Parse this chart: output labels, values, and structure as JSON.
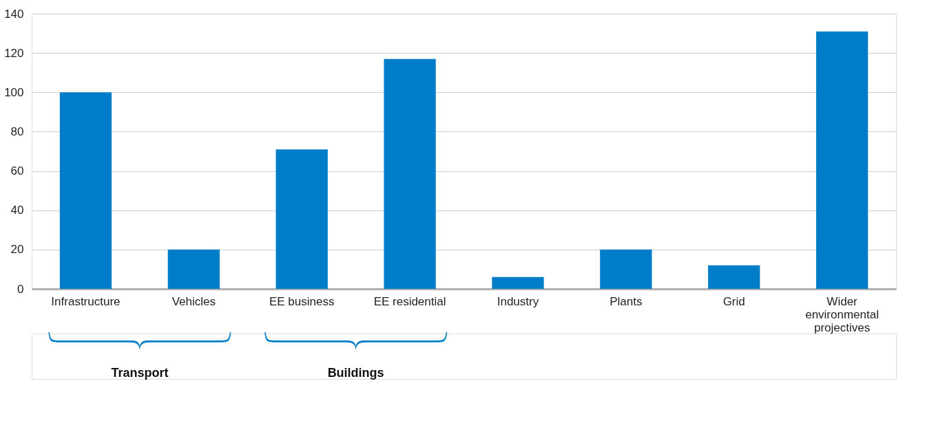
{
  "chart_data": {
    "type": "bar",
    "categories": [
      "Infrastructure",
      "Vehicles",
      "EE business",
      "EE residential",
      "Industry",
      "Plants",
      "Grid",
      "Wider environmental projectives"
    ],
    "values": [
      100,
      20,
      71,
      117,
      6,
      20,
      12,
      131
    ],
    "color": "#007dc8",
    "ylim": [
      0,
      140
    ],
    "yticks": [
      0,
      20,
      40,
      60,
      80,
      100,
      120,
      140
    ],
    "grid": "y",
    "annotations": [
      "Transport",
      "Buildings"
    ]
  }
}
